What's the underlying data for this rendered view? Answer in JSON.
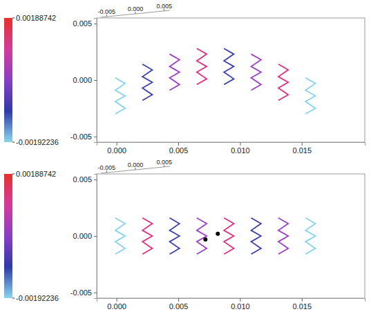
{
  "chart_data": [
    {
      "type": "line",
      "xlim": [
        -0.0016,
        0.0201
      ],
      "xticks": [
        {
          "value": 0,
          "label": "0.000"
        },
        0.005,
        {
          "value": 0.01,
          "label": "0.010"
        },
        0.015
      ],
      "ylim": [
        -0.0055,
        0.0055
      ],
      "yticks": [
        0.005,
        {
          "value": 0,
          "label": "0.000"
        },
        -0.005
      ],
      "zlim": [
        -0.006,
        0.006
      ],
      "zticks": [
        -0.005,
        {
          "value": 0,
          "label": "0.000"
        },
        0.005
      ],
      "grid": false,
      "colorbar": {
        "range": [
          -0.00192236,
          0.00188742
        ],
        "ticks": [
          0.00188742,
          -0.00192236
        ],
        "colors": [
          "#8ad6ee",
          "#2f3aa8",
          "#8a3fc4",
          "#d43a9c",
          "#e8312a"
        ]
      },
      "series": [
        {
          "color": "#86d4ec",
          "x": [
            -0.0001,
            0.0007,
            -0.0001,
            0.0007,
            -0.0001,
            0.0007,
            -0.0001
          ],
          "values": [
            0.0002,
            -0.0003,
            -0.0009,
            -0.0014,
            -0.0019,
            -0.0025,
            -0.003
          ]
        },
        {
          "color": "#3b3fb0",
          "x": [
            0.0021,
            0.0029,
            0.0021,
            0.0029,
            0.0021,
            0.0029,
            0.0021
          ],
          "values": [
            0.0014,
            0.0009,
            0.0003,
            -0.0002,
            -0.0007,
            -0.0013,
            -0.0018
          ]
        },
        {
          "color": "#9b3fc8",
          "x": [
            0.0043,
            0.0051,
            0.0043,
            0.0051,
            0.0043,
            0.0051,
            0.0043
          ],
          "values": [
            0.0023,
            0.0018,
            0.0012,
            0.0007,
            0.0002,
            -0.0004,
            -0.0009
          ]
        },
        {
          "color": "#e0307f",
          "x": [
            0.0065,
            0.0073,
            0.0065,
            0.0073,
            0.0065,
            0.0073,
            0.0065
          ],
          "values": [
            0.0028,
            0.0023,
            0.0017,
            0.0012,
            0.0007,
            0.0001,
            -0.0004
          ]
        },
        {
          "color": "#3b3fb0",
          "x": [
            0.0087,
            0.0095,
            0.0087,
            0.0095,
            0.0087,
            0.0095,
            0.0087
          ],
          "values": [
            0.0028,
            0.0023,
            0.0017,
            0.0012,
            0.0007,
            0.0001,
            -0.0004
          ]
        },
        {
          "color": "#9b3fc8",
          "x": [
            0.0109,
            0.0117,
            0.0109,
            0.0117,
            0.0109,
            0.0117,
            0.0109
          ],
          "values": [
            0.0023,
            0.0018,
            0.0012,
            0.0007,
            0.0002,
            -0.0004,
            -0.0009
          ]
        },
        {
          "color": "#e0307f",
          "x": [
            0.0131,
            0.0139,
            0.0131,
            0.0139,
            0.0131,
            0.0139,
            0.0131
          ],
          "values": [
            0.0014,
            0.0009,
            0.0003,
            -0.0002,
            -0.0007,
            -0.0013,
            -0.0018
          ]
        },
        {
          "color": "#86d4ec",
          "x": [
            0.0153,
            0.0161,
            0.0153,
            0.0161,
            0.0153,
            0.0161,
            0.0153
          ],
          "values": [
            0.0002,
            -0.0003,
            -0.0009,
            -0.0014,
            -0.0019,
            -0.0025,
            -0.003
          ]
        }
      ]
    },
    {
      "type": "line",
      "xlim": [
        -0.0016,
        0.0201
      ],
      "xticks": [
        {
          "value": 0,
          "label": "0.000"
        },
        0.005,
        {
          "value": 0.01,
          "label": "0.010"
        },
        0.015
      ],
      "ylim": [
        -0.0055,
        0.0055
      ],
      "yticks": [
        0.005,
        {
          "value": 0,
          "label": "0.000"
        },
        -0.005
      ],
      "zlim": [
        -0.006,
        0.006
      ],
      "zticks": [
        -0.005,
        {
          "value": 0,
          "label": "0.000"
        },
        0.005
      ],
      "grid": false,
      "colorbar": {
        "range": [
          -0.00192236,
          0.00188742
        ],
        "ticks": [
          0.00188742,
          -0.00192236
        ],
        "colors": [
          "#8ad6ee",
          "#2f3aa8",
          "#8a3fc4",
          "#d43a9c",
          "#e8312a"
        ]
      },
      "series": [
        {
          "color": "#86d4ec",
          "x": [
            -0.0001,
            0.0007,
            -0.0001,
            0.0007,
            -0.0001,
            0.0007,
            -0.0001
          ],
          "values": [
            0.0016,
            0.0011,
            0.0005,
            0,
            -0.0005,
            -0.0011,
            -0.0016
          ]
        },
        {
          "color": "#e0307f",
          "x": [
            0.0021,
            0.0029,
            0.0021,
            0.0029,
            0.0021,
            0.0029,
            0.0021
          ],
          "values": [
            0.0016,
            0.0011,
            0.0005,
            0,
            -0.0005,
            -0.0011,
            -0.0016
          ]
        },
        {
          "color": "#3b3fb0",
          "x": [
            0.0043,
            0.0051,
            0.0043,
            0.0051,
            0.0043,
            0.0051,
            0.0043
          ],
          "values": [
            0.0016,
            0.0011,
            0.0005,
            0,
            -0.0005,
            -0.0011,
            -0.0016
          ]
        },
        {
          "color": "#9b3fc8",
          "x": [
            0.0065,
            0.0073,
            0.0065,
            0.0073,
            0.0065,
            0.0073,
            0.0065
          ],
          "values": [
            0.0016,
            0.0011,
            0.0005,
            0,
            -0.0005,
            -0.0011,
            -0.0016
          ]
        },
        {
          "color": "#e0307f",
          "x": [
            0.0087,
            0.0095,
            0.0087,
            0.0095,
            0.0087,
            0.0095,
            0.0087
          ],
          "values": [
            0.0016,
            0.0011,
            0.0005,
            0,
            -0.0005,
            -0.0011,
            -0.0016
          ]
        },
        {
          "color": "#3b3fb0",
          "x": [
            0.0109,
            0.0117,
            0.0109,
            0.0117,
            0.0109,
            0.0117,
            0.0109
          ],
          "values": [
            0.0016,
            0.0011,
            0.0005,
            0,
            -0.0005,
            -0.0011,
            -0.0016
          ]
        },
        {
          "color": "#9b3fc8",
          "x": [
            0.0131,
            0.0139,
            0.0131,
            0.0139,
            0.0131,
            0.0139,
            0.0131
          ],
          "values": [
            0.0016,
            0.0011,
            0.0005,
            0,
            -0.0005,
            -0.0011,
            -0.0016
          ]
        },
        {
          "color": "#86d4ec",
          "x": [
            0.0153,
            0.0161,
            0.0153,
            0.0161,
            0.0153,
            0.0161,
            0.0153
          ],
          "values": [
            0.0016,
            0.0011,
            0.0005,
            0,
            -0.0005,
            -0.0011,
            -0.0016
          ]
        },
        {
          "type": "scatter",
          "color": "#000000",
          "marker": "circle",
          "x": [
            0.0072,
            0.0082
          ],
          "values": [
            -0.0003,
            0.0002
          ]
        }
      ]
    }
  ]
}
